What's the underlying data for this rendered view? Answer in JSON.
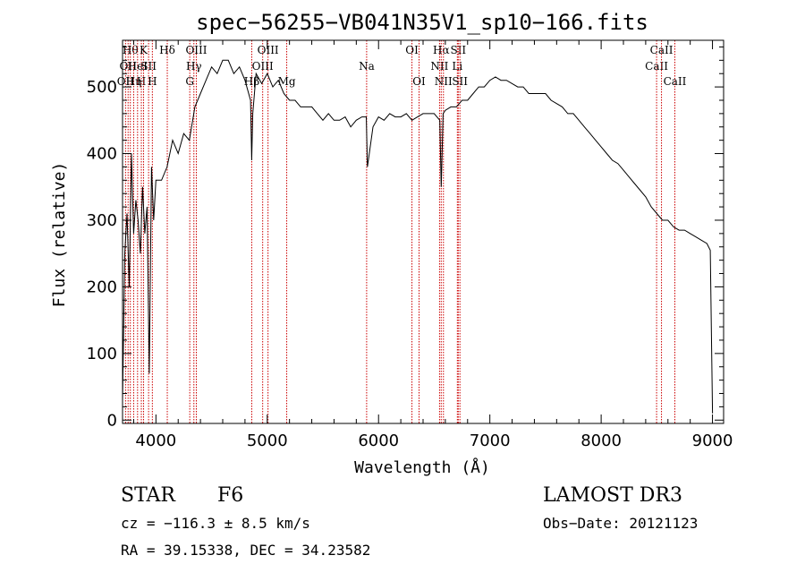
{
  "chart_data": {
    "type": "line",
    "title": "spec−56255−VB041N35V1_sp10−166.fits",
    "xlabel": "Wavelength (Å)",
    "ylabel": "Flux (relative)",
    "xlim": [
      3700,
      9100
    ],
    "ylim": [
      -5,
      570
    ],
    "xticks": [
      4000,
      5000,
      6000,
      7000,
      8000,
      9000
    ],
    "yticks": [
      0,
      100,
      200,
      300,
      400,
      500
    ],
    "series": [
      {
        "x": [
          3700,
          3720,
          3740,
          3760,
          3780,
          3800,
          3820,
          3840,
          3860,
          3880,
          3900,
          3920,
          3940,
          3960,
          3980,
          4000,
          4050,
          4100,
          4150,
          4200,
          4250,
          4300,
          4350,
          4400,
          4450,
          4500,
          4550,
          4600,
          4650,
          4700,
          4750,
          4800,
          4850,
          4860,
          4870,
          4900,
          4950,
          5000,
          5050,
          5100,
          5150,
          5200,
          5250,
          5300,
          5350,
          5400,
          5450,
          5500,
          5550,
          5600,
          5650,
          5700,
          5750,
          5800,
          5850,
          5890,
          5900,
          5950,
          6000,
          6050,
          6100,
          6150,
          6200,
          6250,
          6300,
          6350,
          6400,
          6450,
          6500,
          6550,
          6563,
          6580,
          6600,
          6650,
          6700,
          6750,
          6800,
          6850,
          6900,
          6950,
          7000,
          7050,
          7100,
          7150,
          7200,
          7250,
          7300,
          7350,
          7400,
          7450,
          7500,
          7550,
          7600,
          7650,
          7700,
          7750,
          7800,
          7850,
          7900,
          7950,
          8000,
          8050,
          8100,
          8150,
          8200,
          8250,
          8300,
          8350,
          8400,
          8450,
          8500,
          8550,
          8600,
          8650,
          8700,
          8750,
          8800,
          8850,
          8900,
          8950,
          8980,
          9000
        ],
        "y": [
          30,
          250,
          310,
          200,
          400,
          280,
          330,
          300,
          250,
          350,
          280,
          320,
          70,
          380,
          300,
          360,
          360,
          380,
          420,
          400,
          430,
          420,
          470,
          490,
          510,
          530,
          520,
          540,
          540,
          520,
          530,
          510,
          480,
          390,
          460,
          520,
          505,
          520,
          500,
          510,
          490,
          480,
          480,
          470,
          470,
          470,
          460,
          450,
          460,
          450,
          450,
          455,
          440,
          450,
          455,
          455,
          380,
          440,
          455,
          450,
          460,
          455,
          455,
          460,
          450,
          455,
          460,
          460,
          460,
          450,
          350,
          460,
          465,
          470,
          470,
          480,
          480,
          490,
          500,
          500,
          510,
          515,
          510,
          510,
          505,
          500,
          500,
          490,
          490,
          490,
          490,
          480,
          475,
          470,
          460,
          460,
          450,
          440,
          430,
          420,
          410,
          400,
          390,
          385,
          375,
          365,
          355,
          345,
          335,
          320,
          310,
          300,
          300,
          290,
          285,
          285,
          280,
          275,
          270,
          265,
          255,
          10
        ]
      }
    ],
    "lines": [
      {
        "w": 3727,
        "label": "OII",
        "row": 2
      },
      {
        "w": 3750,
        "label": "OII",
        "row": 1
      },
      {
        "w": 3770,
        "label": "Hθ",
        "row": 0
      },
      {
        "w": 3800,
        "label": "Hη",
        "row": 2
      },
      {
        "w": 3835,
        "label": "HeI",
        "row": 1
      },
      {
        "w": 3869,
        "label": "H",
        "row": 2
      },
      {
        "w": 3889,
        "label": "K",
        "row": 0
      },
      {
        "w": 3934,
        "label": "SII",
        "row": 1
      },
      {
        "w": 3968,
        "label": "H",
        "row": 2
      },
      {
        "w": 4102,
        "label": "Hδ",
        "row": 0
      },
      {
        "w": 4304,
        "label": "G",
        "row": 2
      },
      {
        "w": 4341,
        "label": "Hγ",
        "row": 1
      },
      {
        "w": 4363,
        "label": "OIII",
        "row": 0
      },
      {
        "w": 4861,
        "label": "Hβ",
        "row": 2
      },
      {
        "w": 4959,
        "label": "OIII",
        "row": 1
      },
      {
        "w": 5007,
        "label": "OIII",
        "row": 0
      },
      {
        "w": 5175,
        "label": "Mg",
        "row": 2
      },
      {
        "w": 5893,
        "label": "Na",
        "row": 1
      },
      {
        "w": 6300,
        "label": "OI",
        "row": 0
      },
      {
        "w": 6364,
        "label": "OI",
        "row": 2
      },
      {
        "w": 6548,
        "label": "NII",
        "row": 1
      },
      {
        "w": 6563,
        "label": "Hα",
        "row": 0
      },
      {
        "w": 6583,
        "label": "NII",
        "row": 2
      },
      {
        "w": 6708,
        "label": "Li",
        "row": 1
      },
      {
        "w": 6716,
        "label": "SII",
        "row": 0
      },
      {
        "w": 6731,
        "label": "SII",
        "row": 2
      },
      {
        "w": 8498,
        "label": "CaII",
        "row": 1
      },
      {
        "w": 8542,
        "label": "CaII",
        "row": 0
      },
      {
        "w": 8662,
        "label": "CaII",
        "row": 2
      }
    ]
  },
  "info": {
    "class_label": "STAR",
    "subclass": "F6",
    "survey": "LAMOST DR3",
    "cz": "cz = −116.3 ± 8.5 km/s",
    "obs_date": "Obs−Date: 20121123",
    "coords": "RA =  39.15338, DEC =  34.23582"
  }
}
